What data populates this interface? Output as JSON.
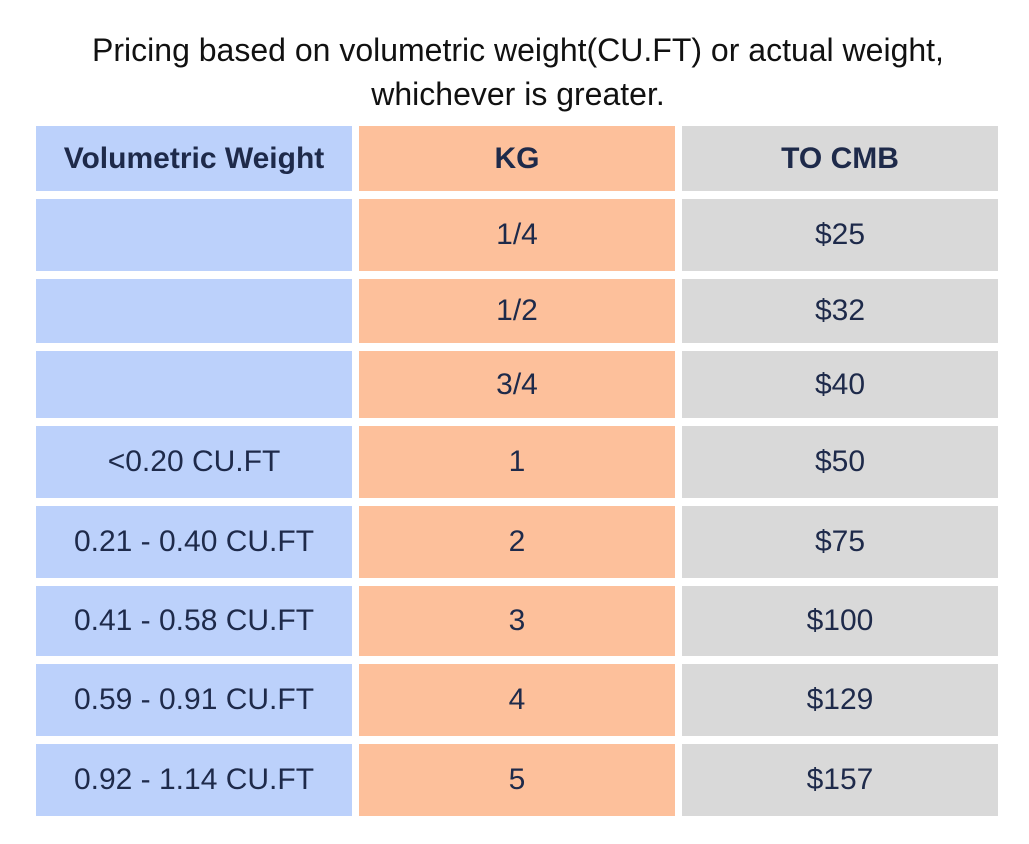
{
  "caption": {
    "line1": "Pricing based on volumetric weight(CU.FT) or actual weight,",
    "line2": "whichever is greater."
  },
  "table": {
    "headers": [
      "Volumetric Weight",
      "KG",
      "TO CMB"
    ],
    "rows": [
      {
        "volume": "",
        "kg": "1/4",
        "price": "$25"
      },
      {
        "volume": "",
        "kg": "1/2",
        "price": "$32"
      },
      {
        "volume": "",
        "kg": "3/4",
        "price": "$40"
      },
      {
        "volume": "<0.20 CU.FT",
        "kg": "1",
        "price": "$50"
      },
      {
        "volume": "0.21 - 0.40 CU.FT",
        "kg": "2",
        "price": "$75"
      },
      {
        "volume": "0.41 - 0.58 CU.FT",
        "kg": "3",
        "price": "$100"
      },
      {
        "volume": "0.59 - 0.91 CU.FT",
        "kg": "4",
        "price": "$129"
      },
      {
        "volume": "0.92 - 1.14 CU.FT",
        "kg": "5",
        "price": "$157"
      }
    ]
  },
  "colors": {
    "volume_column": "#bcd1fb",
    "kg_column": "#fdc09b",
    "price_column": "#d9d9d9",
    "cell_text": "#1e2a4a"
  }
}
